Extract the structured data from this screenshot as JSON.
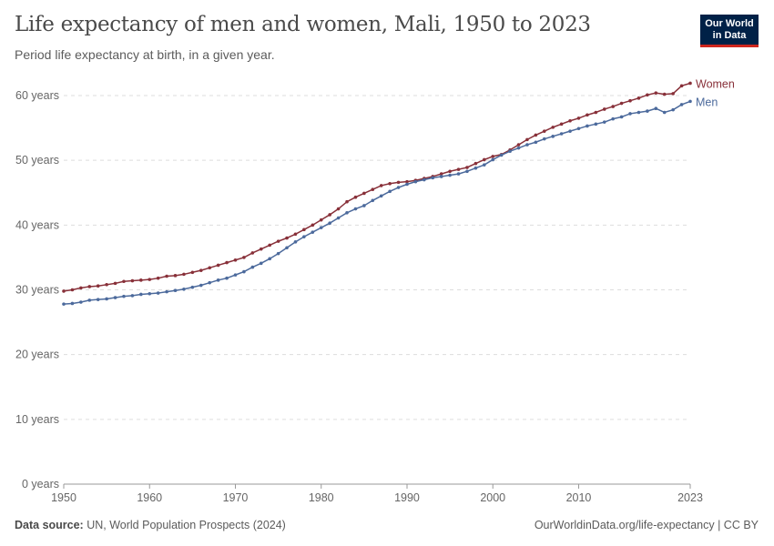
{
  "header": {
    "title": "Life expectancy of men and women, Mali, 1950 to 2023",
    "subtitle": "Period life expectancy at birth, in a given year.",
    "logo": "Our World in Data"
  },
  "footer": {
    "source_label": "Data source:",
    "source": "UN, World Population Prospects (2024)",
    "link": "OurWorldinData.org/life-expectancy | CC BY"
  },
  "chart_data": {
    "type": "line",
    "title": "Life expectancy of men and women, Mali, 1950 to 2023",
    "xlim": [
      1950,
      2023
    ],
    "ylim": [
      0,
      60
    ],
    "grid": "horizontal dashed",
    "legend": "right (line-end labels)",
    "x_ticks": [
      "1950",
      "1960",
      "1970",
      "1980",
      "1990",
      "2000",
      "2010",
      "2023"
    ],
    "y_ticks": [
      "0 years",
      "10 years",
      "20 years",
      "30 years",
      "40 years",
      "50 years",
      "60 years"
    ],
    "x": [
      1950,
      1951,
      1952,
      1953,
      1954,
      1955,
      1956,
      1957,
      1958,
      1959,
      1960,
      1961,
      1962,
      1963,
      1964,
      1965,
      1966,
      1967,
      1968,
      1969,
      1970,
      1971,
      1972,
      1973,
      1974,
      1975,
      1976,
      1977,
      1978,
      1979,
      1980,
      1981,
      1982,
      1983,
      1984,
      1985,
      1986,
      1987,
      1988,
      1989,
      1990,
      1991,
      1992,
      1993,
      1994,
      1995,
      1996,
      1997,
      1998,
      1999,
      2000,
      2001,
      2002,
      2003,
      2004,
      2005,
      2006,
      2007,
      2008,
      2009,
      2010,
      2011,
      2012,
      2013,
      2014,
      2015,
      2016,
      2017,
      2018,
      2019,
      2020,
      2021,
      2022,
      2023
    ],
    "series": [
      {
        "name": "Women",
        "color": "#883039",
        "values": [
          29.8,
          30.0,
          30.3,
          30.5,
          30.6,
          30.8,
          31.0,
          31.3,
          31.4,
          31.5,
          31.6,
          31.8,
          32.1,
          32.2,
          32.4,
          32.7,
          33.0,
          33.4,
          33.8,
          34.2,
          34.6,
          35.0,
          35.7,
          36.3,
          36.9,
          37.5,
          38.0,
          38.6,
          39.3,
          40.0,
          40.8,
          41.6,
          42.5,
          43.6,
          44.3,
          44.9,
          45.5,
          46.1,
          46.4,
          46.6,
          46.7,
          46.9,
          47.2,
          47.5,
          47.9,
          48.3,
          48.6,
          48.9,
          49.5,
          50.1,
          50.6,
          50.9,
          51.6,
          52.4,
          53.2,
          53.9,
          54.5,
          55.1,
          55.6,
          56.1,
          56.5,
          57.0,
          57.4,
          57.9,
          58.3,
          58.8,
          59.2,
          59.6,
          60.1,
          60.4,
          60.2,
          60.3,
          61.5,
          61.9
        ]
      },
      {
        "name": "Men",
        "color": "#4c6a9c",
        "values": [
          27.8,
          27.9,
          28.1,
          28.4,
          28.5,
          28.6,
          28.8,
          29.0,
          29.1,
          29.3,
          29.4,
          29.5,
          29.7,
          29.9,
          30.1,
          30.4,
          30.7,
          31.1,
          31.5,
          31.8,
          32.3,
          32.8,
          33.5,
          34.1,
          34.8,
          35.6,
          36.5,
          37.4,
          38.2,
          38.9,
          39.6,
          40.3,
          41.1,
          41.9,
          42.5,
          43.0,
          43.8,
          44.5,
          45.2,
          45.8,
          46.3,
          46.7,
          47.0,
          47.3,
          47.5,
          47.7,
          47.9,
          48.3,
          48.8,
          49.3,
          50.1,
          50.8,
          51.4,
          51.9,
          52.4,
          52.8,
          53.3,
          53.7,
          54.1,
          54.5,
          54.9,
          55.3,
          55.6,
          55.9,
          56.4,
          56.7,
          57.2,
          57.4,
          57.6,
          58.0,
          57.4,
          57.8,
          58.6,
          59.1
        ]
      }
    ]
  }
}
